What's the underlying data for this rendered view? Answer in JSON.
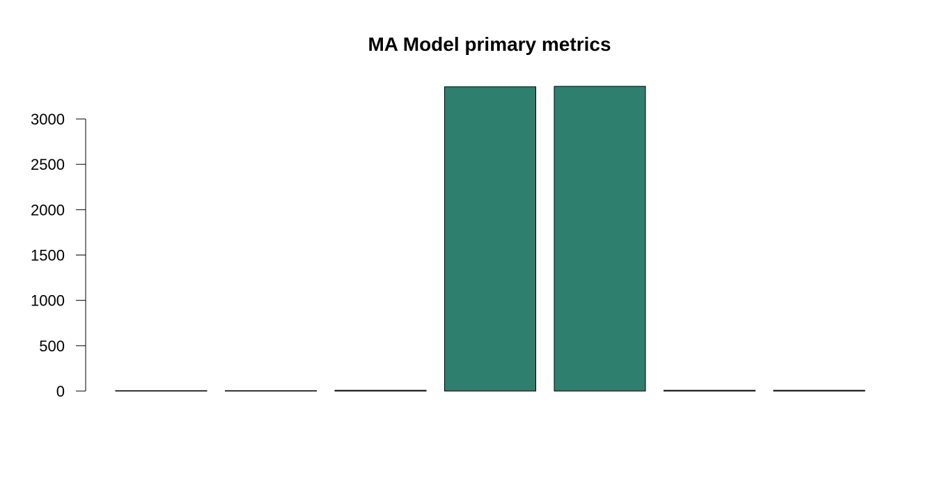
{
  "chart_data": {
    "type": "bar",
    "title": "MA Model primary metrics",
    "xlabel": "",
    "ylabel": "",
    "categories": [
      "",
      "",
      "",
      "",
      "",
      "",
      ""
    ],
    "values": [
      0.5,
      0.9,
      8.0,
      3355,
      3360,
      8.0,
      8.0
    ],
    "yticks": [
      0,
      500,
      1000,
      1500,
      2000,
      2500,
      3000
    ],
    "ylim": [
      0,
      3360
    ],
    "bar_color": "#2e7f6e",
    "bar_stroke": "#000000",
    "grid": false,
    "legend": "none"
  }
}
